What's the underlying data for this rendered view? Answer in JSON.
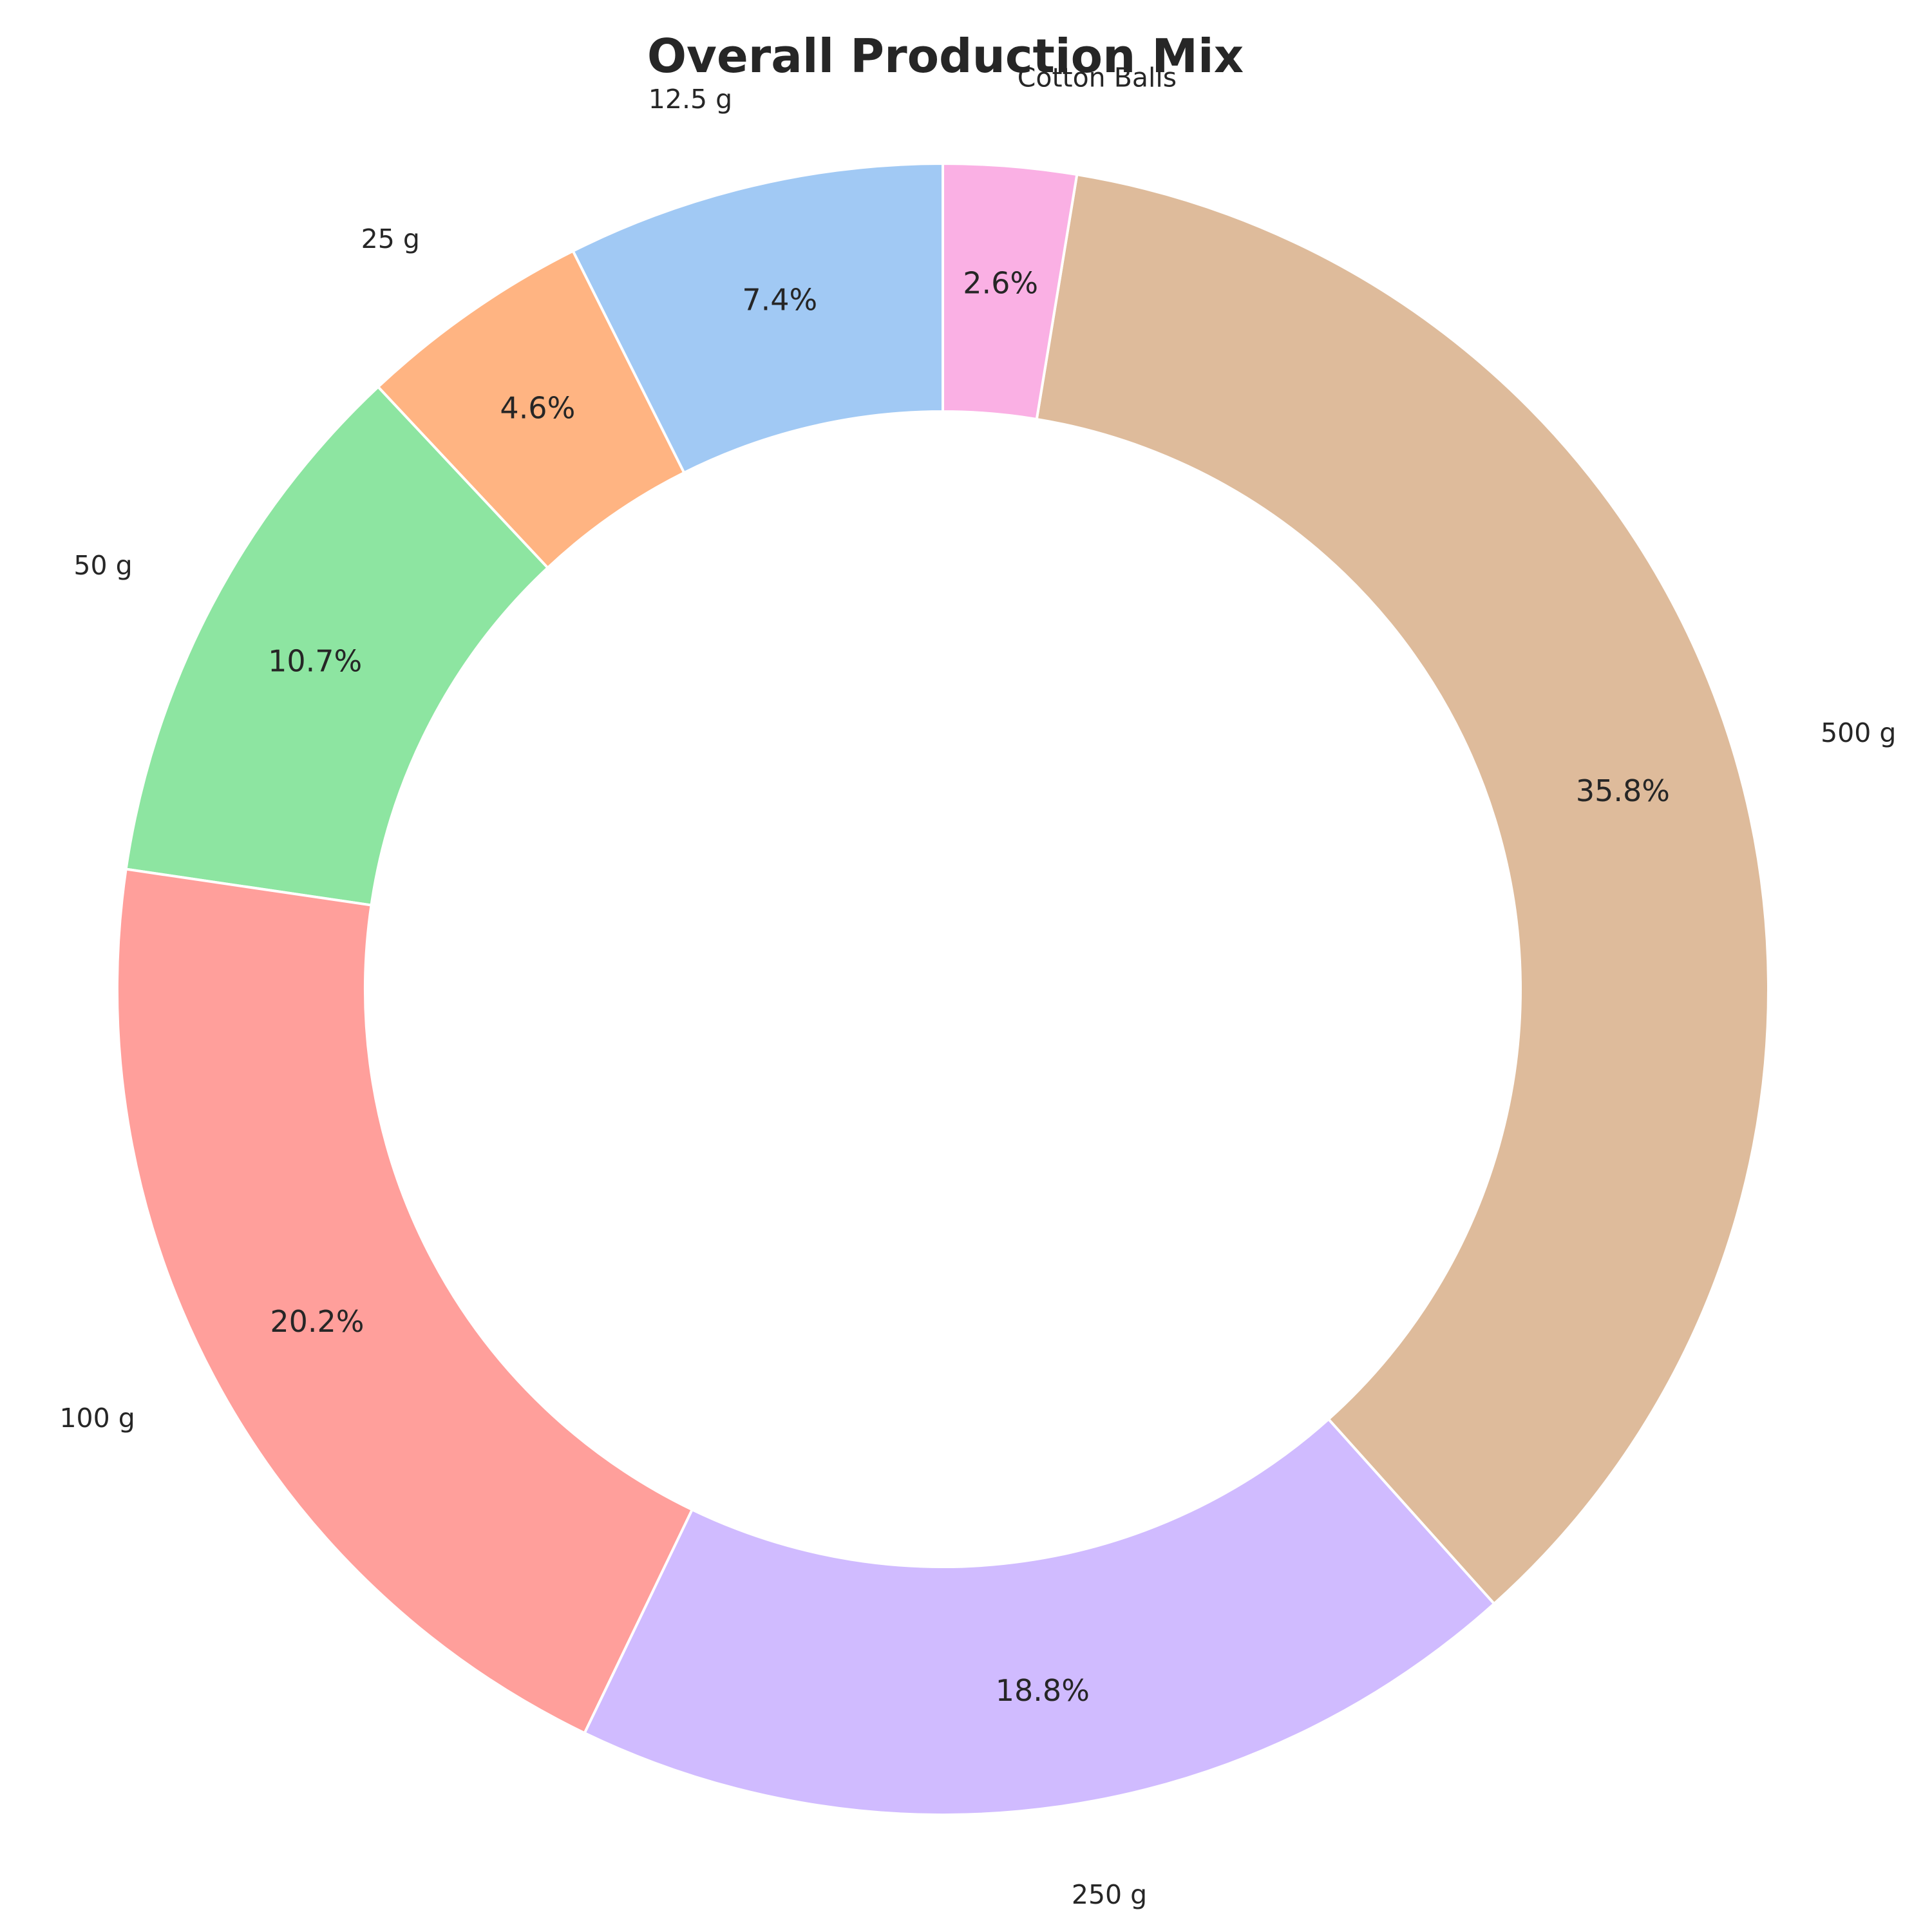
{
  "chart_data": {
    "type": "pie",
    "style": "donut",
    "title": "Overall Production Mix",
    "start": "top",
    "direction": "counterclockwise",
    "legend": "none",
    "slices": [
      {
        "label": "12.5 g",
        "value": 7.4,
        "pct_label": "7.4%",
        "color": "#a1c9f4"
      },
      {
        "label": "25 g",
        "value": 4.6,
        "pct_label": "4.6%",
        "color": "#ffb482"
      },
      {
        "label": "50 g",
        "value": 10.7,
        "pct_label": "10.7%",
        "color": "#8de5a1"
      },
      {
        "label": "100 g",
        "value": 20.2,
        "pct_label": "20.2%",
        "color": "#ff9f9b"
      },
      {
        "label": "250 g",
        "value": 18.8,
        "pct_label": "18.8%",
        "color": "#d0bbff"
      },
      {
        "label": "500 g",
        "value": 35.8,
        "pct_label": "35.8%",
        "color": "#debb9b"
      },
      {
        "label": "Cotton Balls",
        "value": 2.6,
        "pct_label": "2.6%",
        "color": "#fab0e4"
      }
    ]
  }
}
